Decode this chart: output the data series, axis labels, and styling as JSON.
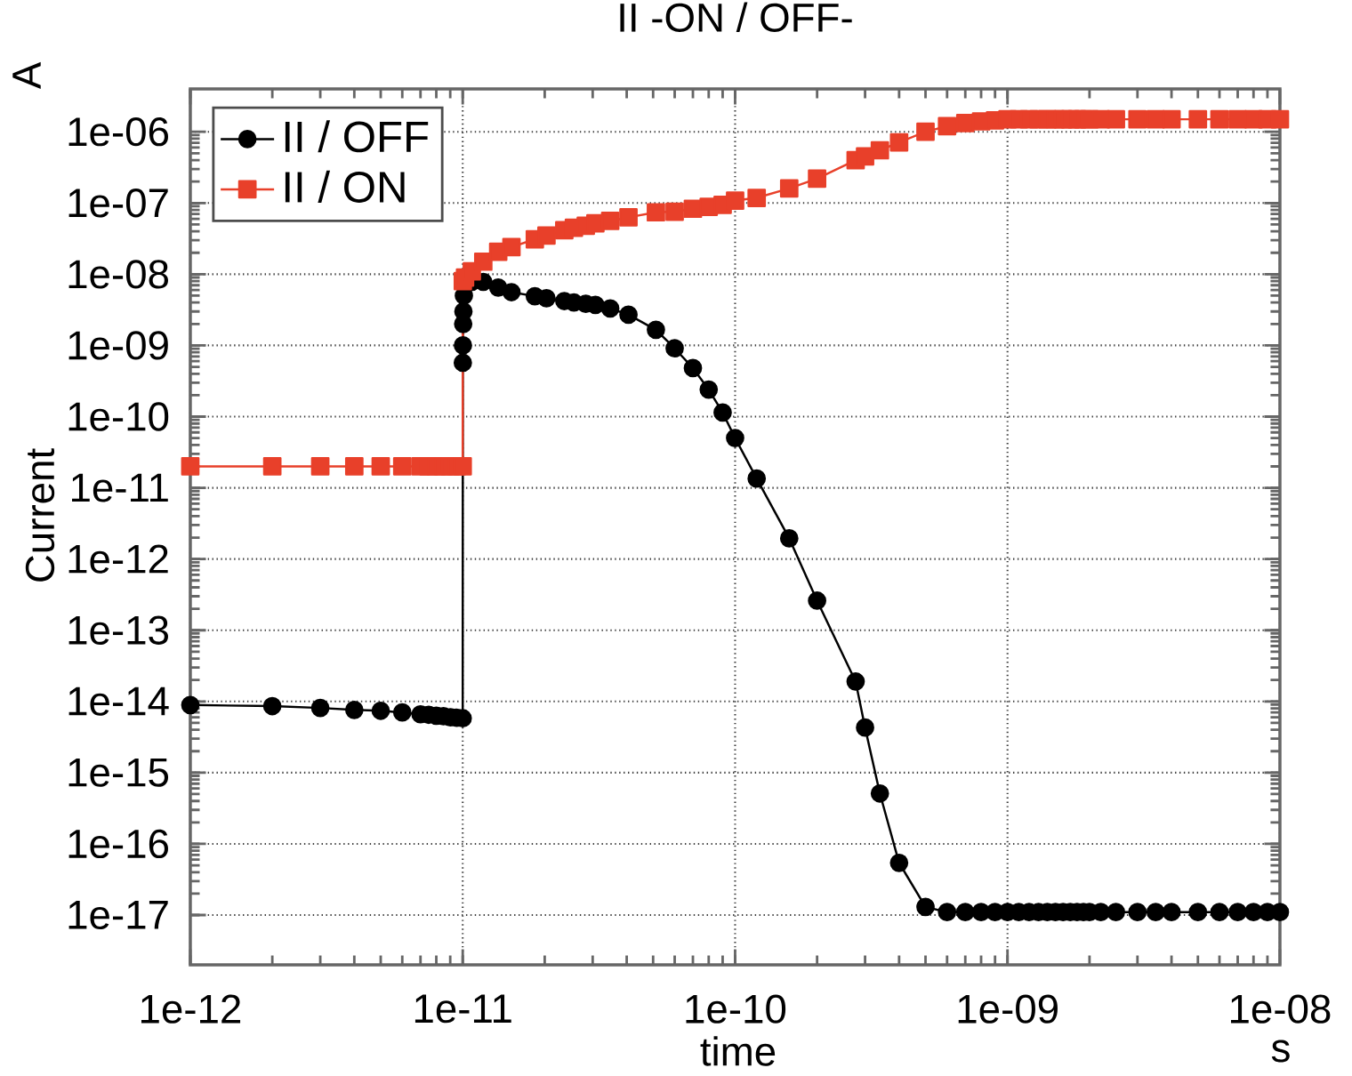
{
  "chart_data": {
    "type": "line",
    "title": "II -ON / OFF-",
    "xlabel": "time",
    "ylabel": "Current",
    "annotations": [
      "A",
      "s"
    ],
    "log": "xy",
    "grid": true,
    "legend": "top left",
    "line_style": "solid",
    "xlim": [
      1e-12,
      1e-08
    ],
    "ylim": [
      2e-18,
      4e-06
    ],
    "xticks": [
      {
        "value": 1e-12,
        "label": "1e-12"
      },
      {
        "value": 1e-11,
        "label": "1e-11"
      },
      {
        "value": 1e-10,
        "label": "1e-10"
      },
      {
        "value": 1e-09,
        "label": "1e-09"
      },
      {
        "value": 1e-08,
        "label": "1e-08"
      }
    ],
    "yticks": [
      {
        "value": 1e-17,
        "label": "1e-17"
      },
      {
        "value": 1e-16,
        "label": "1e-16"
      },
      {
        "value": 1e-15,
        "label": "1e-15"
      },
      {
        "value": 1e-14,
        "label": "1e-14"
      },
      {
        "value": 1e-13,
        "label": "1e-13"
      },
      {
        "value": 1e-12,
        "label": "1e-12"
      },
      {
        "value": 1e-11,
        "label": "1e-11"
      },
      {
        "value": 1e-10,
        "label": "1e-10"
      },
      {
        "value": 1e-09,
        "label": "1e-09"
      },
      {
        "value": 1e-08,
        "label": "1e-08"
      },
      {
        "value": 1e-07,
        "label": "1e-07"
      },
      {
        "value": 1e-06,
        "label": "1e-06"
      }
    ],
    "series": [
      {
        "name": "II / OFF",
        "color": "#000000",
        "marker": "circle",
        "x": [
          1e-12,
          2e-12,
          3e-12,
          4e-12,
          5e-12,
          6e-12,
          7e-12,
          7.5e-12,
          8e-12,
          8.5e-12,
          9e-12,
          9.5e-12,
          1e-11,
          1.001e-11,
          1.002e-11,
          1.004e-11,
          1.006e-11,
          1.01e-11,
          1.02e-11,
          1.05e-11,
          1.08e-11,
          1.19e-11,
          1.35e-11,
          1.51e-11,
          1.84e-11,
          2.03e-11,
          2.36e-11,
          2.56e-11,
          2.83e-11,
          3.07e-11,
          3.48e-11,
          4.06e-11,
          5.12e-11,
          6e-11,
          7e-11,
          8e-11,
          9e-11,
          1e-10,
          1.2e-10,
          1.58e-10,
          2e-10,
          2.77e-10,
          3e-10,
          3.4e-10,
          4e-10,
          5e-10,
          6e-10,
          7e-10,
          8e-10,
          9e-10,
          1e-09,
          1.1e-09,
          1.2e-09,
          1.3e-09,
          1.4e-09,
          1.5e-09,
          1.6e-09,
          1.7e-09,
          1.8e-09,
          1.9e-09,
          2e-09,
          2.2e-09,
          2.5e-09,
          3e-09,
          3.5e-09,
          4e-09,
          5e-09,
          6e-09,
          7e-09,
          8e-09,
          9e-09,
          1e-08
        ],
        "values": [
          8.9e-15,
          8.6e-15,
          8.1e-15,
          7.6e-15,
          7.4e-15,
          7e-15,
          6.6e-15,
          6.5e-15,
          6.3e-15,
          6.2e-15,
          6e-15,
          5.9e-15,
          5.8e-15,
          5.7e-10,
          1e-09,
          2e-09,
          3e-09,
          5e-09,
          7e-09,
          8e-09,
          7.8e-09,
          7.8e-09,
          6.5e-09,
          5.6e-09,
          4.9e-09,
          4.6e-09,
          4.2e-09,
          4e-09,
          3.85e-09,
          3.7e-09,
          3.3e-09,
          2.7e-09,
          1.66e-09,
          9.1e-10,
          4.8e-10,
          2.4e-10,
          1.14e-10,
          5e-11,
          1.35e-11,
          1.95e-12,
          2.6e-13,
          1.9e-14,
          4.3e-15,
          5.1e-16,
          5.4e-17,
          1.3e-17,
          1.1e-17,
          1.1e-17,
          1.1e-17,
          1.1e-17,
          1.1e-17,
          1.1e-17,
          1.1e-17,
          1.1e-17,
          1.1e-17,
          1.1e-17,
          1.1e-17,
          1.1e-17,
          1.1e-17,
          1.1e-17,
          1.1e-17,
          1.1e-17,
          1.1e-17,
          1.1e-17,
          1.1e-17,
          1.1e-17,
          1.1e-17,
          1.1e-17,
          1.1e-17,
          1.1e-17,
          1.1e-17,
          1.1e-17
        ]
      },
      {
        "name": "II / ON",
        "color": "#e8402a",
        "marker": "square",
        "x": [
          1e-12,
          2e-12,
          3e-12,
          4e-12,
          5e-12,
          6e-12,
          7e-12,
          7.5e-12,
          8e-12,
          8.5e-12,
          9e-12,
          9.5e-12,
          1e-11,
          1.001e-11,
          1.02e-11,
          1.08e-11,
          1.19e-11,
          1.35e-11,
          1.51e-11,
          1.84e-11,
          2.03e-11,
          2.36e-11,
          2.56e-11,
          2.83e-11,
          3.07e-11,
          3.48e-11,
          4.06e-11,
          5.12e-11,
          6e-11,
          7e-11,
          8e-11,
          9e-11,
          1e-10,
          1.2e-10,
          1.58e-10,
          2e-10,
          2.77e-10,
          3e-10,
          3.4e-10,
          4e-10,
          5e-10,
          6e-10,
          7e-10,
          8e-10,
          9e-10,
          1e-09,
          1.1e-09,
          1.2e-09,
          1.3e-09,
          1.4e-09,
          1.5e-09,
          1.6e-09,
          1.7e-09,
          1.8e-09,
          1.9e-09,
          2e-09,
          2.2e-09,
          2.5e-09,
          3e-09,
          3.5e-09,
          4e-09,
          5e-09,
          6e-09,
          7e-09,
          8e-09,
          9e-09,
          1e-08
        ],
        "values": [
          2e-11,
          2e-11,
          2e-11,
          2e-11,
          2e-11,
          2e-11,
          2e-11,
          2e-11,
          2e-11,
          2e-11,
          2e-11,
          2e-11,
          2e-11,
          8e-09,
          9e-09,
          1.1e-08,
          1.5e-08,
          2.07e-08,
          2.4e-08,
          3.1e-08,
          3.5e-08,
          4.15e-08,
          4.5e-08,
          4.8e-08,
          5.2e-08,
          5.6e-08,
          6.3e-08,
          7.4e-08,
          7.55e-08,
          8.3e-08,
          8.8e-08,
          9.4e-08,
          1.08e-07,
          1.18e-07,
          1.6e-07,
          2.2e-07,
          4e-07,
          4.5e-07,
          5.5e-07,
          7.1e-07,
          1e-06,
          1.2e-06,
          1.33e-06,
          1.4e-06,
          1.45e-06,
          1.5e-06,
          1.5e-06,
          1.5e-06,
          1.5e-06,
          1.5e-06,
          1.5e-06,
          1.5e-06,
          1.5e-06,
          1.5e-06,
          1.5e-06,
          1.5e-06,
          1.5e-06,
          1.5e-06,
          1.5e-06,
          1.5e-06,
          1.5e-06,
          1.5e-06,
          1.5e-06,
          1.5e-06,
          1.5e-06,
          1.5e-06,
          1.5e-06
        ]
      }
    ]
  }
}
